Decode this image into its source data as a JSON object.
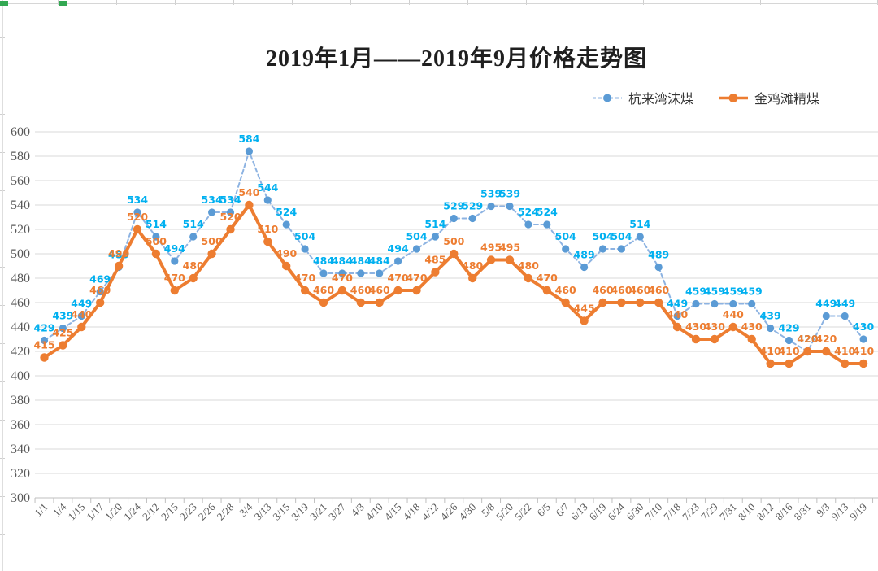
{
  "title": "2019年1月——2019年9月价格走势图",
  "colors": {
    "blue_dot": "#5b9bd5",
    "blue_line": "#8db3e2",
    "blue_label": "#00b0f0",
    "orange": "#ed7d31",
    "grid": "#d9d9d9",
    "axis_line": "#bfbfbf",
    "axis_text": "#595959",
    "selection_handle_green": "#33a852"
  },
  "chart_data": {
    "type": "line",
    "title": "2019年1月——2019年9月价格走势图",
    "xlabel": "",
    "ylabel": "",
    "grid": true,
    "data_labels": true,
    "legend_position": "top-right",
    "y_axis": {
      "min": 300,
      "max": 600,
      "step": 20
    },
    "y_ticks": [
      600,
      580,
      560,
      540,
      520,
      500,
      480,
      460,
      440,
      420,
      400,
      380,
      360,
      340,
      320,
      300
    ],
    "categories": [
      "1/1",
      "1/4",
      "1/15",
      "1/17",
      "1/20",
      "1/24",
      "2/12",
      "2/15",
      "2/23",
      "2/26",
      "2/28",
      "3/4",
      "3/13",
      "3/15",
      "3/19",
      "3/21",
      "3/27",
      "4/3",
      "4/10",
      "4/15",
      "4/18",
      "4/22",
      "4/26",
      "4/30",
      "5/8",
      "5/20",
      "5/22",
      "6/5",
      "6/7",
      "6/13",
      "6/19",
      "6/24",
      "6/30",
      "7/10",
      "7/18",
      "7/23",
      "7/29",
      "7/31",
      "8/10",
      "8/12",
      "8/16",
      "8/31",
      "9/3",
      "9/13",
      "9/19"
    ],
    "series": [
      {
        "name": "杭来湾沫煤",
        "line_style": "dashed",
        "line_color": "#8db3e2",
        "marker_color": "#5b9bd5",
        "label_color": "#00b0f0",
        "values": [
          429,
          439,
          449,
          469,
          489,
          534,
          514,
          494,
          514,
          534,
          534,
          584,
          544,
          524,
          504,
          484,
          484,
          484,
          484,
          494,
          504,
          514,
          529,
          529,
          539,
          539,
          524,
          524,
          504,
          489,
          504,
          504,
          514,
          489,
          449,
          459,
          459,
          459,
          459,
          439,
          429,
          420,
          449,
          449,
          430
        ]
      },
      {
        "name": "金鸡滩精煤",
        "line_style": "solid",
        "line_color": "#ed7d31",
        "marker_color": "#ed7d31",
        "label_color": "#ed7d31",
        "values": [
          415,
          425,
          440,
          460,
          490,
          520,
          500,
          470,
          480,
          500,
          520,
          540,
          510,
          490,
          470,
          460,
          470,
          460,
          460,
          470,
          470,
          485,
          500,
          480,
          495,
          495,
          480,
          470,
          460,
          445,
          460,
          460,
          460,
          460,
          440,
          430,
          430,
          440,
          430,
          410,
          410,
          420,
          420,
          410,
          410
        ]
      }
    ]
  }
}
